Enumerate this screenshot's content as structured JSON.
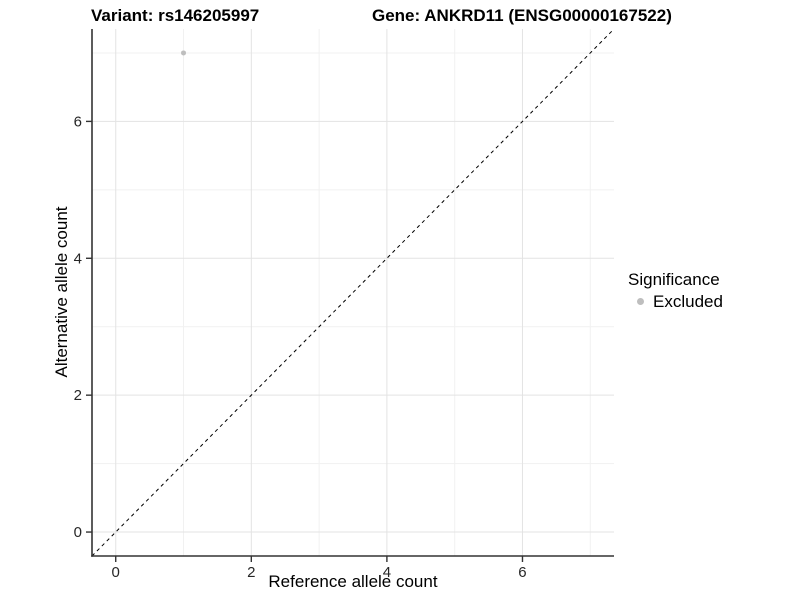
{
  "header": {
    "title_left": "Variant: rs146205997",
    "title_right": "Gene: ANKRD11 (ENSG00000167522)"
  },
  "chart_data": {
    "type": "scatter",
    "title": "Variant: rs146205997 | Gene: ANKRD11 (ENSG00000167522)",
    "xlabel": "Reference allele count",
    "ylabel": "Alternative allele count",
    "xlim": [
      -0.35,
      7.35
    ],
    "ylim": [
      -0.35,
      7.35
    ],
    "x_ticks": [
      0,
      2,
      4,
      6
    ],
    "y_ticks": [
      0,
      2,
      4,
      6
    ],
    "x_minor_gridlines": [
      1,
      3,
      5,
      7
    ],
    "y_minor_gridlines": [
      1,
      3,
      5,
      7
    ],
    "grid": "major and minor, light gray on white",
    "series": [
      {
        "name": "Excluded",
        "color": "#bebebe",
        "marker_radius": 2.5,
        "points": [
          {
            "x": 1,
            "y": 7
          }
        ]
      }
    ],
    "identity_line": {
      "description": "dashed y = x reference line, corner to corner",
      "style": "dashed",
      "color": "#000000"
    },
    "legend": {
      "title": "Significance",
      "position": "right",
      "entries": [
        {
          "label": "Excluded",
          "color": "#bebebe"
        }
      ]
    },
    "style": {
      "axis_color": "#333333",
      "major_grid_color": "#e3e3e3",
      "minor_grid_color": "#f1f1f1",
      "tick_label_color": "#262626",
      "background": "#ffffff"
    }
  }
}
